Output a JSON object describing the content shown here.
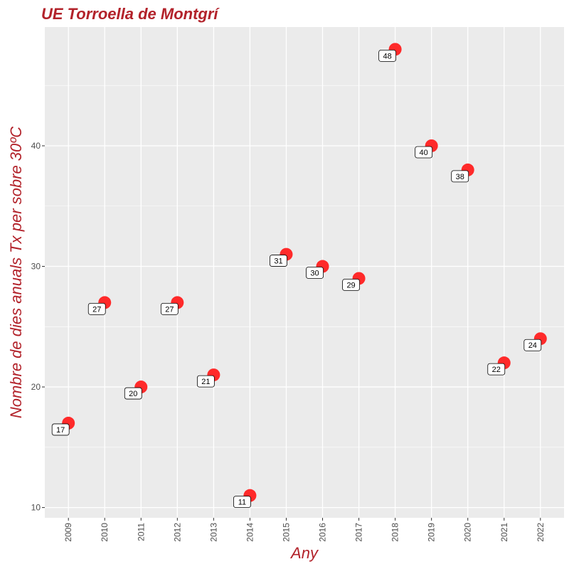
{
  "chart_data": {
    "type": "scatter",
    "title": "UE Torroella de Montgrí",
    "xlabel": "Any",
    "ylabel": "Nombre de dies anuals Tx per sobre 30ºC",
    "x": [
      2009,
      2010,
      2011,
      2012,
      2013,
      2014,
      2015,
      2016,
      2017,
      2018,
      2019,
      2020,
      2021,
      2022
    ],
    "y": [
      17,
      27,
      20,
      27,
      21,
      11,
      31,
      30,
      29,
      48,
      40,
      38,
      22,
      24
    ],
    "data_labels": [
      "17",
      "27",
      "20",
      "27",
      "21",
      "11",
      "31",
      "30",
      "29",
      "48",
      "40",
      "38",
      "22",
      "24"
    ],
    "x_ticks": [
      "2009",
      "2010",
      "2011",
      "2012",
      "2013",
      "2014",
      "2015",
      "2016",
      "2017",
      "2018",
      "2019",
      "2020",
      "2021",
      "2022"
    ],
    "y_ticks": [
      10,
      20,
      30,
      40
    ],
    "ylim": [
      9.15,
      49.85
    ],
    "xlim": [
      2008.35,
      2022.65
    ],
    "grid": true,
    "legend": "none",
    "colors": {
      "title": "#b2222a",
      "axis_title": "#b2222a",
      "point": "#ff2a2a",
      "panel": "#ebebeb",
      "grid": "#ffffff"
    }
  }
}
